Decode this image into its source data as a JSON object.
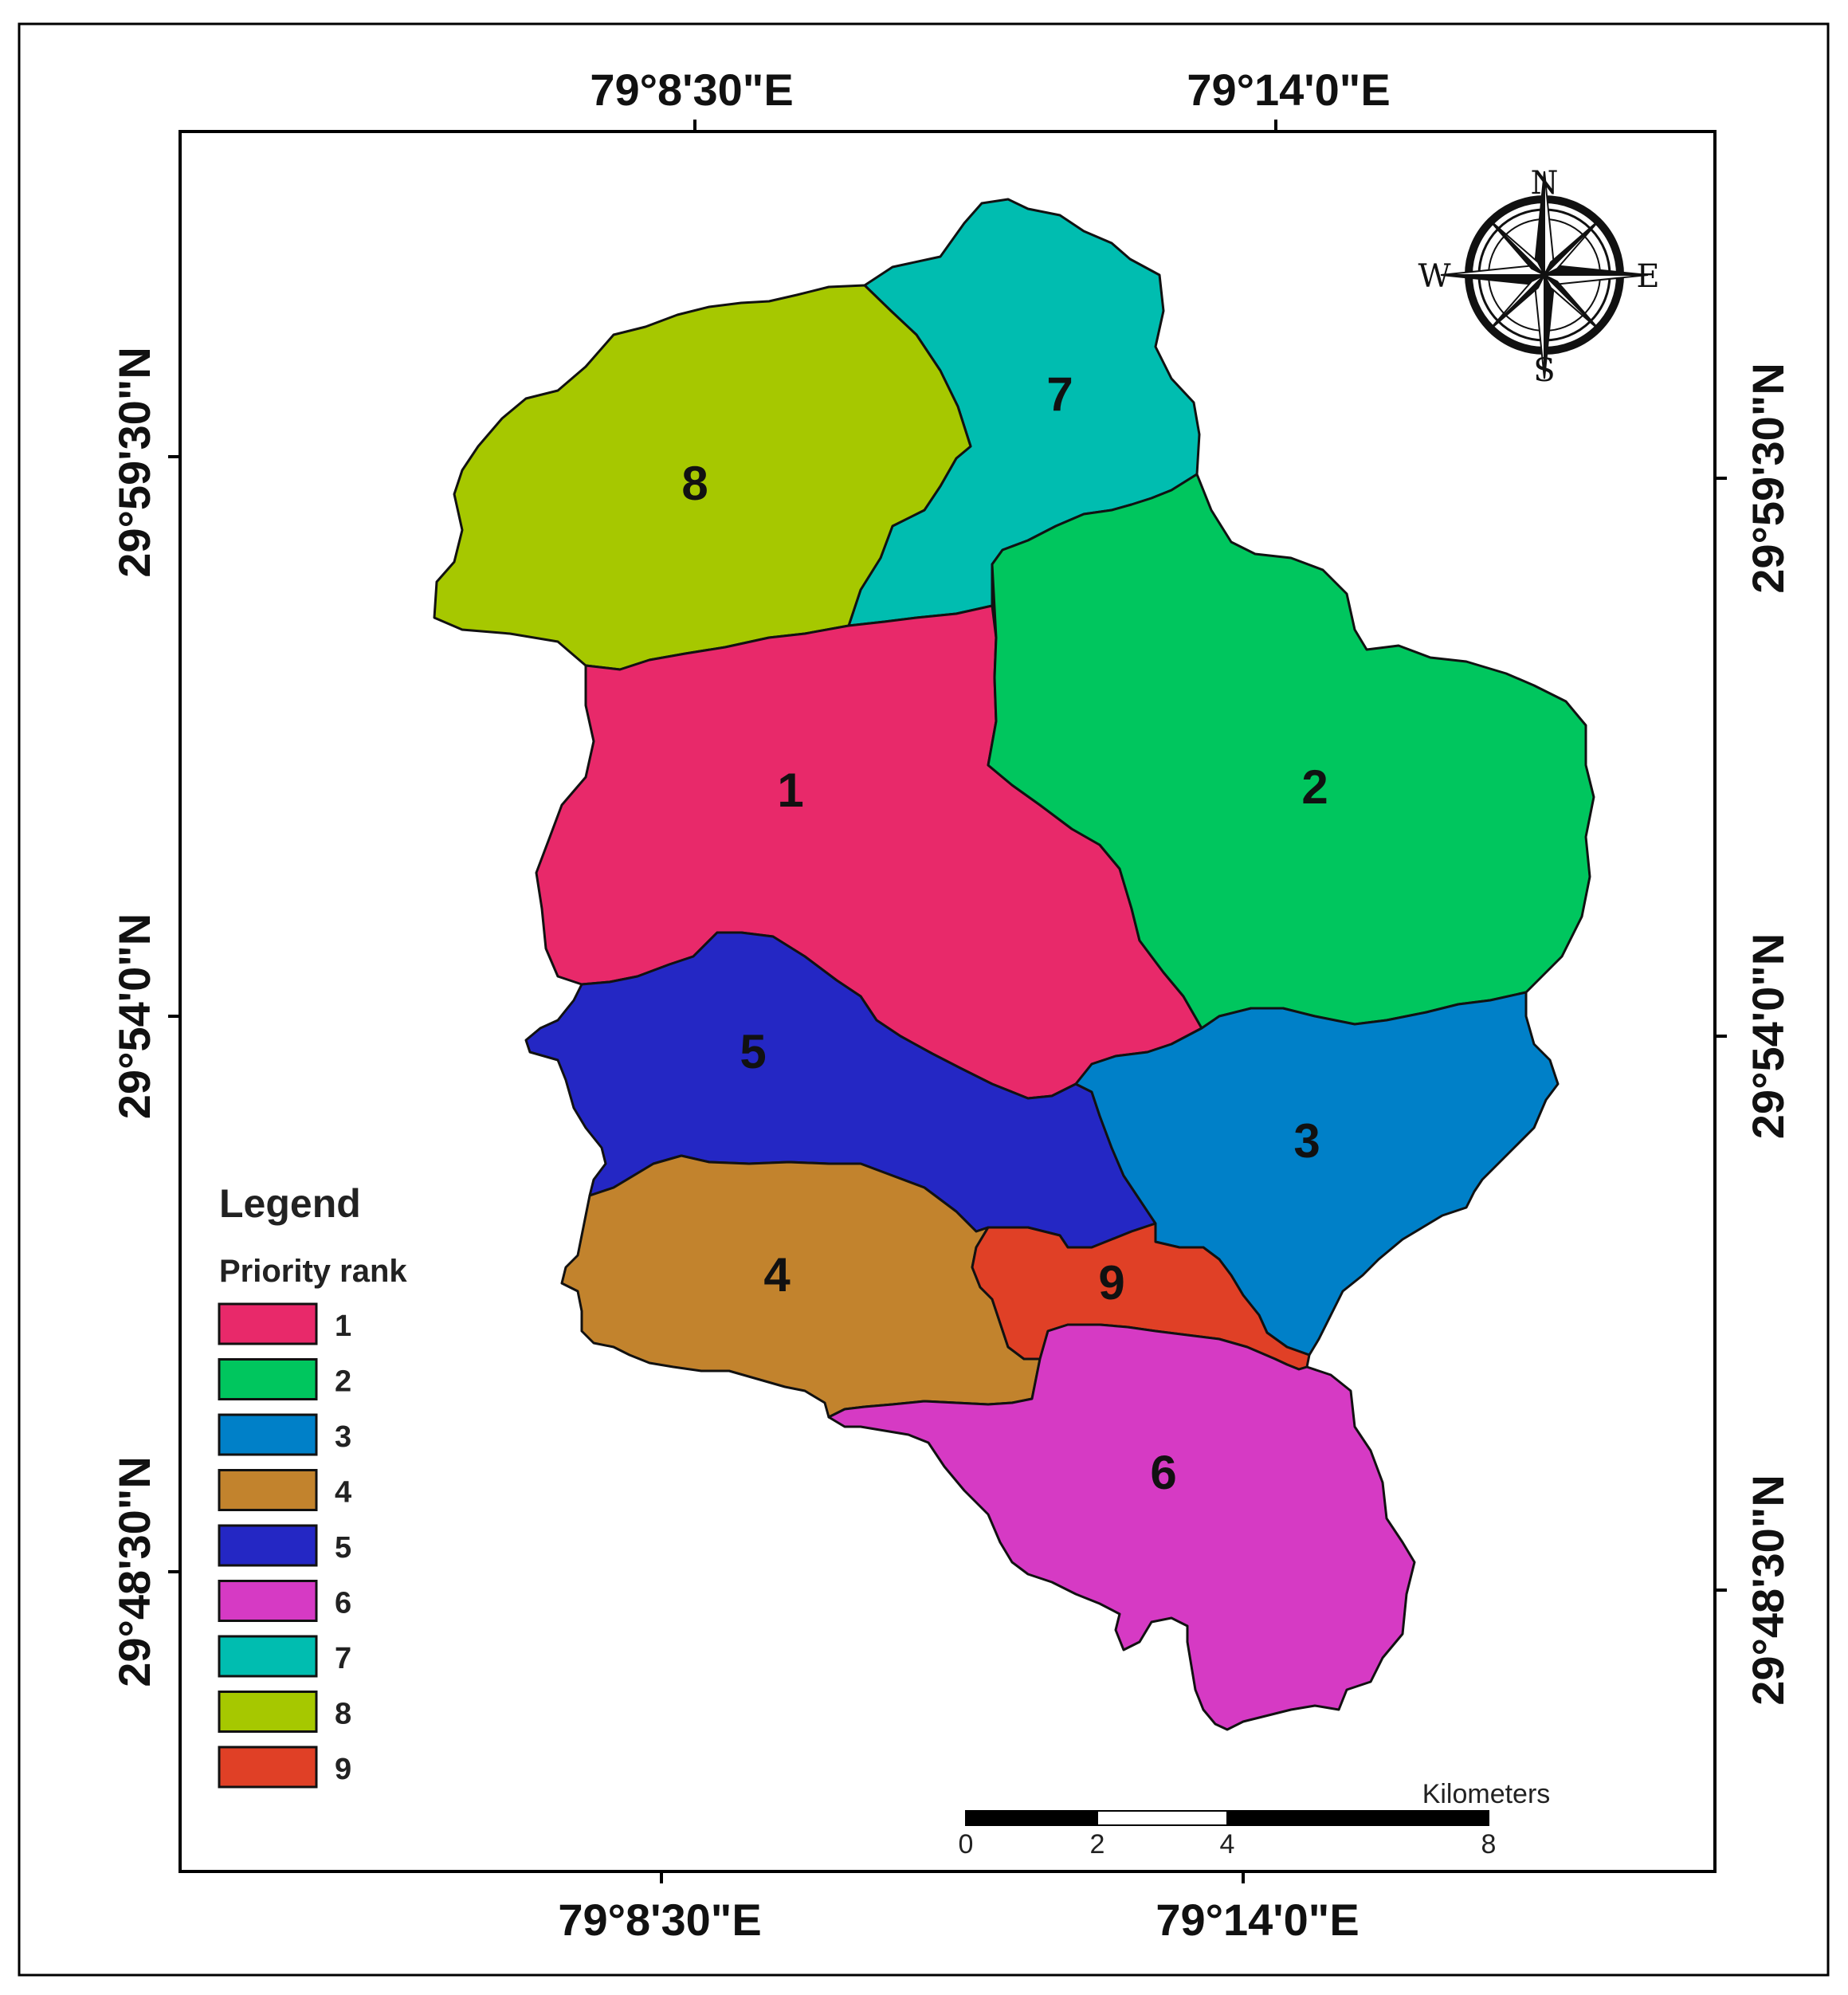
{
  "coordinates": {
    "top": [
      "79°8'30\"E",
      "79°14'0\"E"
    ],
    "bottom": [
      "79°8'30\"E",
      "79°14'0\"E"
    ],
    "left": [
      "29°59'30\"N",
      "29°54'0\"N",
      "29°48'30\"N"
    ],
    "right": [
      "29°59'30\"N",
      "29°54'0\"N",
      "29°48'30\"N"
    ]
  },
  "compass": {
    "north": "N",
    "south": "S",
    "east": "E",
    "west": "W"
  },
  "zones": [
    {
      "rank": "1",
      "color": "#E8296A"
    },
    {
      "rank": "2",
      "color": "#00C65E"
    },
    {
      "rank": "3",
      "color": "#0080C8"
    },
    {
      "rank": "4",
      "color": "#C2832D"
    },
    {
      "rank": "5",
      "color": "#2427C4"
    },
    {
      "rank": "6",
      "color": "#D63AC4"
    },
    {
      "rank": "7",
      "color": "#00BDB0"
    },
    {
      "rank": "8",
      "color": "#A6C800"
    },
    {
      "rank": "9",
      "color": "#E04026"
    }
  ],
  "legend": {
    "title": "Legend",
    "subtitle": "Priority rank",
    "items": [
      "1",
      "2",
      "3",
      "4",
      "5",
      "6",
      "7",
      "8",
      "9"
    ]
  },
  "scale_bar": {
    "unit": "Kilometers",
    "ticks": [
      "0",
      "2",
      "4",
      "8"
    ]
  }
}
